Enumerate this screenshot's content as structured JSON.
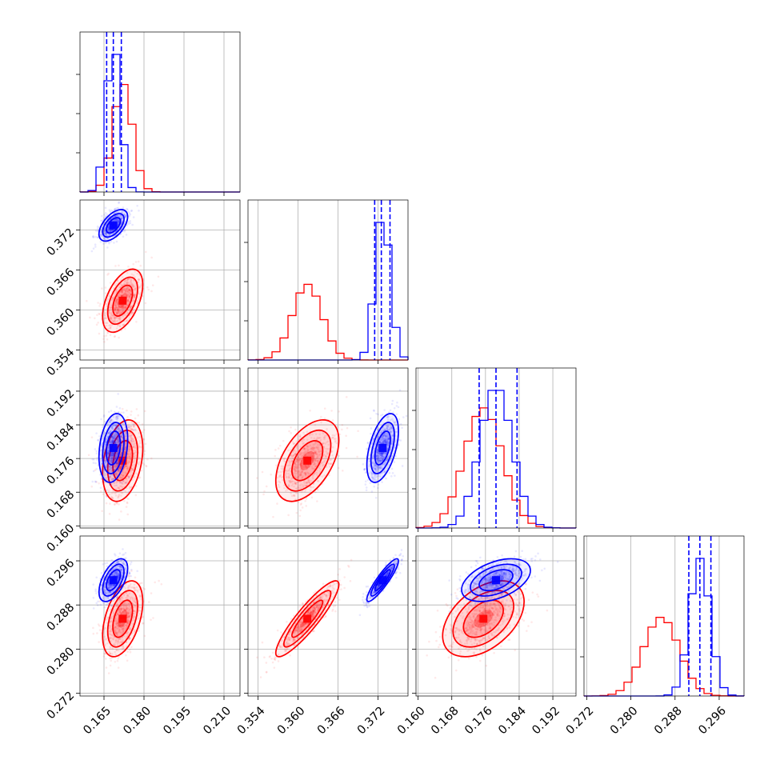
{
  "chart_data": {
    "type": "corner",
    "title": "",
    "grid": true,
    "colors": {
      "red": "#ff0000",
      "blue": "#0000ff"
    },
    "parameters": [
      {
        "range": [
          0.156,
          0.216
        ],
        "ticks": [
          0.165,
          0.18,
          0.195,
          0.21
        ],
        "tick_labels": [
          "0.165",
          "0.180",
          "0.195",
          "0.210"
        ]
      },
      {
        "range": [
          0.3525,
          0.3765
        ],
        "ticks": [
          0.354,
          0.36,
          0.366,
          0.372
        ],
        "tick_labels": [
          "0.354",
          "0.360",
          "0.366",
          "0.372"
        ]
      },
      {
        "range": [
          0.1595,
          0.1975
        ],
        "ticks": [
          0.16,
          0.168,
          0.176,
          0.184,
          0.192
        ],
        "tick_labels": [
          "0.160",
          "0.168",
          "0.176",
          "0.184",
          "0.192"
        ]
      },
      {
        "range": [
          0.2715,
          0.3005
        ],
        "ticks": [
          0.272,
          0.28,
          0.288,
          0.296
        ],
        "tick_labels": [
          "0.272",
          "0.280",
          "0.288",
          "0.296"
        ]
      }
    ],
    "series": [
      {
        "color": "#ff0000",
        "mean": [
          0.172,
          0.3614,
          0.1755,
          0.2855
        ],
        "sd": [
          0.0035,
          0.0022,
          0.0045,
          0.0032
        ],
        "corr": [
          [
            1,
            0.5,
            0.3,
            0.45
          ],
          [
            0.5,
            1,
            0.5,
            0.9
          ],
          [
            0.3,
            0.5,
            1,
            0.45
          ],
          [
            0.45,
            0.9,
            0.45,
            1
          ]
        ],
        "quantiles": []
      },
      {
        "color": "#0000ff",
        "mean": [
          0.1685,
          0.3727,
          0.1785,
          0.2925
        ],
        "sd": [
          0.0025,
          0.0011,
          0.0038,
          0.0018
        ],
        "corr": [
          [
            1,
            0.55,
            0.25,
            0.55
          ],
          [
            0.55,
            1,
            0.5,
            0.9
          ],
          [
            0.25,
            0.5,
            1,
            0.45
          ],
          [
            0.55,
            0.9,
            0.45,
            1
          ]
        ],
        "quantiles": [
          [
            0.166,
            0.1685,
            0.1715
          ],
          [
            0.3715,
            0.3725,
            0.3738
          ],
          [
            0.1745,
            0.1785,
            0.1835
          ],
          [
            0.2905,
            0.2925,
            0.2945
          ]
        ]
      }
    ]
  }
}
